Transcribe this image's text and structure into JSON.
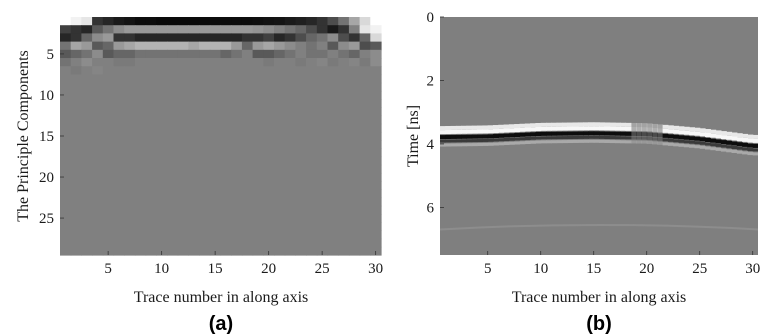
{
  "chart_data": [
    {
      "type": "heatmap",
      "panel_label": "(a)",
      "xlabel": "Trace number in along axis",
      "ylabel": "The Principle Components",
      "xlim": [
        0.5,
        30.5
      ],
      "ylim": [
        29.5,
        0.5
      ],
      "y_direction": "down",
      "x_ticks": [
        5,
        10,
        15,
        20,
        25,
        30
      ],
      "y_ticks": [
        5,
        10,
        15,
        20,
        25
      ],
      "grid": false,
      "colormap": "gray",
      "n_traces": 30,
      "n_components": 29,
      "background_value": 0.5,
      "rows": [
        [
          1.0,
          0.95,
          0.9,
          0.2,
          0.15,
          0.1,
          0.08,
          0.05,
          0.05,
          0.04,
          0.04,
          0.04,
          0.04,
          0.04,
          0.05,
          0.05,
          0.05,
          0.05,
          0.06,
          0.07,
          0.08,
          0.1,
          0.12,
          0.15,
          0.2,
          0.3,
          0.45,
          0.65,
          0.85,
          1.0
        ],
        [
          0.25,
          0.2,
          0.15,
          0.35,
          0.45,
          0.55,
          0.6,
          0.6,
          0.6,
          0.6,
          0.6,
          0.6,
          0.6,
          0.6,
          0.6,
          0.6,
          0.6,
          0.6,
          0.58,
          0.55,
          0.5,
          0.45,
          0.4,
          0.3,
          0.2,
          0.1,
          0.2,
          0.5,
          0.9,
          0.95
        ],
        [
          0.15,
          0.2,
          0.4,
          0.55,
          0.6,
          0.2,
          0.2,
          0.15,
          0.15,
          0.15,
          0.15,
          0.15,
          0.15,
          0.15,
          0.15,
          0.15,
          0.15,
          0.2,
          0.2,
          0.25,
          0.15,
          0.2,
          0.3,
          0.4,
          0.45,
          0.55,
          0.3,
          0.2,
          0.4,
          0.85
        ],
        [
          0.45,
          0.65,
          0.6,
          0.35,
          0.4,
          0.6,
          0.65,
          0.7,
          0.7,
          0.7,
          0.7,
          0.7,
          0.65,
          0.7,
          0.7,
          0.7,
          0.6,
          0.4,
          0.6,
          0.65,
          0.6,
          0.55,
          0.5,
          0.45,
          0.5,
          0.35,
          0.55,
          0.6,
          0.3,
          0.35
        ],
        [
          0.35,
          0.4,
          0.45,
          0.55,
          0.35,
          0.4,
          0.4,
          0.45,
          0.45,
          0.45,
          0.45,
          0.45,
          0.45,
          0.45,
          0.45,
          0.4,
          0.45,
          0.5,
          0.35,
          0.35,
          0.4,
          0.45,
          0.5,
          0.45,
          0.45,
          0.5,
          0.45,
          0.4,
          0.5,
          0.55
        ],
        [
          0.45,
          0.5,
          0.55,
          0.5,
          0.5,
          0.48,
          0.48,
          0.5,
          0.5,
          0.5,
          0.5,
          0.5,
          0.5,
          0.5,
          0.5,
          0.5,
          0.5,
          0.5,
          0.5,
          0.48,
          0.5,
          0.5,
          0.48,
          0.5,
          0.52,
          0.48,
          0.5,
          0.52,
          0.48,
          0.55
        ],
        [
          0.5,
          0.48,
          0.5,
          0.52,
          0.5,
          0.5,
          0.5,
          0.5,
          0.5,
          0.5,
          0.5,
          0.5,
          0.5,
          0.5,
          0.5,
          0.5,
          0.5,
          0.5,
          0.5,
          0.5,
          0.5,
          0.5,
          0.5,
          0.5,
          0.5,
          0.5,
          0.5,
          0.5,
          0.5,
          0.5
        ]
      ]
    },
    {
      "type": "heatmap",
      "panel_label": "(b)",
      "xlabel": "Trace number in along axis",
      "ylabel": "Time [ns]",
      "xlim": [
        0.5,
        30.5
      ],
      "ylim": [
        7.5,
        0
      ],
      "y_direction": "down",
      "x_ticks": [
        5,
        10,
        15,
        20,
        25,
        30
      ],
      "y_ticks": [
        0,
        2,
        4,
        6
      ],
      "grid": false,
      "colormap": "gray",
      "background_value": 0.5,
      "reflection": {
        "x": [
          1,
          5,
          10,
          15,
          20,
          25,
          30
        ],
        "t": [
          3.72,
          3.7,
          3.62,
          3.6,
          3.63,
          3.78,
          4.0
        ]
      },
      "gap_x": 20,
      "faint_event_t": 6.6
    }
  ]
}
